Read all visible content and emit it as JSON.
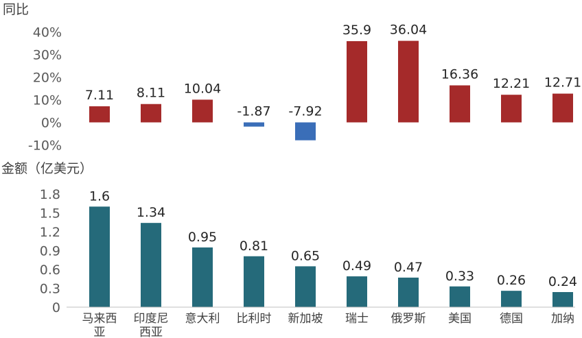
{
  "chart_data": [
    {
      "type": "bar",
      "ylabel": "同比",
      "yticks": [
        "40%",
        "30%",
        "20%",
        "10%",
        "0%",
        "-10%"
      ],
      "ylim": [
        -10,
        40
      ],
      "categories": [
        "马来西亚",
        "印度尼西亚",
        "意大利",
        "比利时",
        "新加坡",
        "瑞士",
        "俄罗斯",
        "美国",
        "德国",
        "加纳"
      ],
      "values": [
        7.11,
        8.11,
        10.04,
        -1.87,
        -7.92,
        35.9,
        36.04,
        16.36,
        12.21,
        12.71
      ],
      "data_labels": [
        "7.11",
        "8.11",
        "10.04",
        "-1.87",
        "-7.92",
        "35.9",
        "36.04",
        "16.36",
        "12.21",
        "12.71"
      ],
      "colors": {
        "positive": "#A52A2A",
        "negative": "#3A6EB8"
      }
    },
    {
      "type": "bar",
      "ylabel": "金额（亿美元）",
      "yticks": [
        "1.8",
        "1.5",
        "1.2",
        "0.9",
        "0.6",
        "0.3",
        "0"
      ],
      "ylim": [
        0,
        1.8
      ],
      "categories": [
        "马来西亚",
        "印度尼西亚",
        "意大利",
        "比利时",
        "新加坡",
        "瑞士",
        "俄罗斯",
        "美国",
        "德国",
        "加纳"
      ],
      "category_lines": [
        [
          "马来西",
          "亚"
        ],
        [
          "印度尼",
          "西亚"
        ],
        [
          "意大利"
        ],
        [
          "比利时"
        ],
        [
          "新加坡"
        ],
        [
          "瑞士"
        ],
        [
          "俄罗斯"
        ],
        [
          "美国"
        ],
        [
          "德国"
        ],
        [
          "加纳"
        ]
      ],
      "values": [
        1.6,
        1.34,
        0.95,
        0.81,
        0.65,
        0.49,
        0.47,
        0.33,
        0.26,
        0.24
      ],
      "data_labels": [
        "1.6",
        "1.34",
        "0.95",
        "0.81",
        "0.65",
        "0.49",
        "0.47",
        "0.33",
        "0.26",
        "0.24"
      ],
      "colors": {
        "bar": "#256A7A",
        "axis": "#BFBFBF"
      }
    }
  ]
}
